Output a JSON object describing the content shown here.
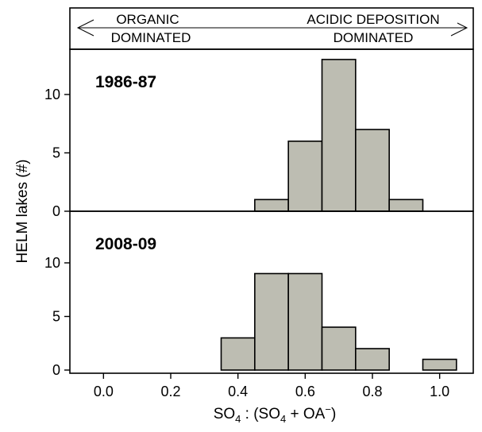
{
  "chart_data": {
    "type": "bar",
    "title": "",
    "xlabel": "SO4 : (SO4 + OA⁻)",
    "ylabel": "HELM lakes (#)",
    "xlim": [
      -0.1,
      1.1
    ],
    "x_ticks": [
      "0.0",
      "0.2",
      "0.4",
      "0.6",
      "0.8",
      "1.0"
    ],
    "x_tick_values": [
      0.0,
      0.2,
      0.4,
      0.6,
      0.8,
      1.0
    ],
    "bin_width": 0.1,
    "header": {
      "left_line1": "ORGANIC",
      "left_line2": "DOMINATED",
      "right_line1": "ACIDIC DEPOSITION",
      "right_line2": "DOMINATED"
    },
    "panels": [
      {
        "label": "1986-87",
        "ylim": [
          0,
          14
        ],
        "y_ticks": [
          0,
          5,
          10
        ],
        "bins": [
          {
            "center": 0.5,
            "value": 1
          },
          {
            "center": 0.6,
            "value": 6
          },
          {
            "center": 0.7,
            "value": 13
          },
          {
            "center": 0.8,
            "value": 7
          },
          {
            "center": 0.9,
            "value": 1
          }
        ]
      },
      {
        "label": "2008-09",
        "ylim": [
          0,
          11
        ],
        "y_ticks": [
          0,
          5,
          10
        ],
        "bins": [
          {
            "center": 0.4,
            "value": 3
          },
          {
            "center": 0.5,
            "value": 9
          },
          {
            "center": 0.6,
            "value": 9
          },
          {
            "center": 0.7,
            "value": 4
          },
          {
            "center": 0.8,
            "value": 2
          },
          {
            "center": 1.0,
            "value": 1
          }
        ]
      }
    ]
  }
}
